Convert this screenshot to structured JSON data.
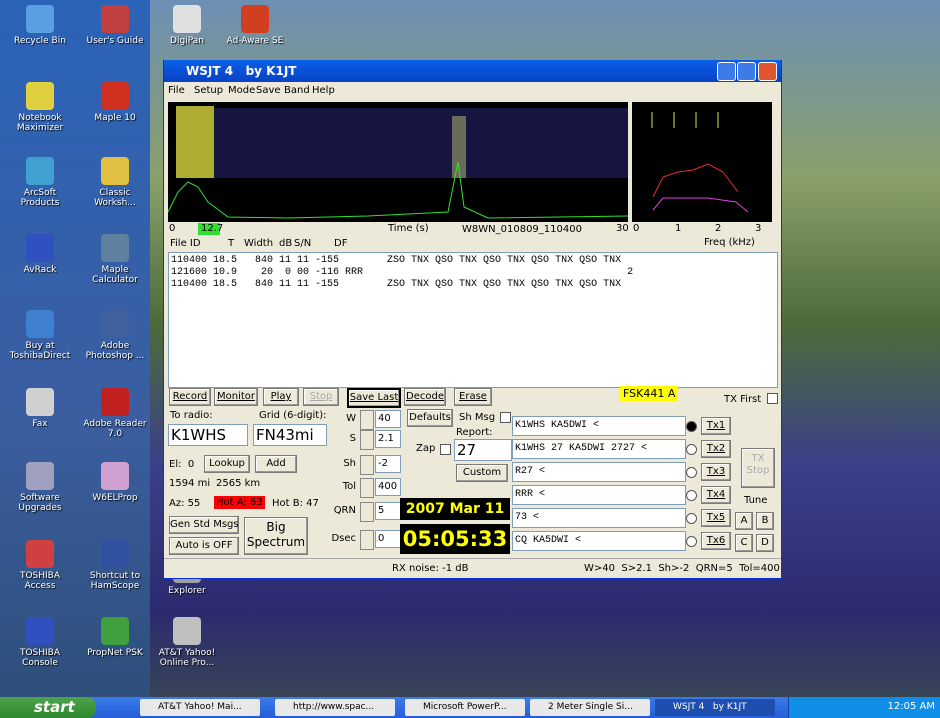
{
  "desktop": {
    "icons": [
      "Recycle Bin",
      "User's Guide",
      "DigiPan",
      "Ad-Aware SE",
      "Notebook Maximizer",
      "Maple 10",
      "ArcSoft Products",
      "Classic Worksh...",
      "AvRack",
      "Maple Calculator",
      "Buy at ToshibaDirect",
      "Adobe Photoshop ...",
      "Fax",
      "Adobe Reader 7.0",
      "Software Upgrades",
      "W6ELProp",
      "TOSHIBA Access",
      "Shortcut to HamScope",
      "Explorer",
      "TOSHIBA Console",
      "PropNet PSK",
      "AT&T Yahoo! Online Pro..."
    ]
  },
  "window": {
    "title": "WSJT 4   by K1JT",
    "menu": [
      "File",
      "Setup",
      "Mode",
      "Save",
      "Band",
      "Help"
    ],
    "spectrum": {
      "time_start": "0",
      "marker": "12.7",
      "time_label": "Time (s)",
      "file": "W8WN_010809_110400",
      "time_end": "30",
      "freq_ticks": [
        "0",
        "1",
        "2",
        "3"
      ],
      "freq_label": "Freq (kHz)"
    },
    "columns": [
      "File ID",
      "T",
      "Width",
      "dB",
      "S/N",
      "DF"
    ],
    "decodes": [
      "110400 18.5   840 11 11 -155        ZSO TNX QSO TNX QSO TNX QSO TNX QSO TNX",
      "121600 10.9    20  0 00 -116 RRR                                            2",
      "110400 18.5   840 11 11 -155        ZSO TNX QSO TNX QSO TNX QSO TNX QSO TNX"
    ],
    "buttons": [
      "Record",
      "Monitor",
      "Play",
      "Stop",
      "Save Last",
      "Decode",
      "Erase"
    ],
    "mode": "FSK441 A",
    "tx_first": "TX First",
    "to_radio_label": "To radio:",
    "to_radio": "K1WHS",
    "grid_label": "Grid (6-digit):",
    "grid": "FN43mi",
    "el": "El:  0",
    "lookup": "Lookup",
    "add": "Add",
    "miles": "1594 mi",
    "km": "2565 km",
    "az": "Az: 55",
    "hot_a": "Hot A: 63",
    "hot_b": "Hot B: 47",
    "gen_std": "Gen Std Msgs",
    "auto": "Auto is OFF",
    "big_spectrum": "Big Spectrum",
    "spinners": [
      {
        "label": "W",
        "value": "40"
      },
      {
        "label": "S",
        "value": "2.1"
      },
      {
        "label": "Sh",
        "value": "-2"
      },
      {
        "label": "Tol",
        "value": "400"
      },
      {
        "label": "QRN",
        "value": "5"
      },
      {
        "label": "Dsec",
        "value": "0"
      }
    ],
    "defaults": "Defaults",
    "sh_msg": "Sh Msg",
    "zap": "Zap",
    "report_label": "Report:",
    "report": "27",
    "custom": "Custom",
    "date": "2007 Mar 11",
    "time": "05:05:33",
    "messages": [
      "K1WHS KA5DWI <",
      "K1WHS 27 KA5DWI 2727 <",
      "R27 <",
      "RRR <",
      "73 <",
      "CQ KA5DWI <"
    ],
    "tx_buttons": [
      "Tx1",
      "Tx2",
      "Tx3",
      "Tx4",
      "Tx5",
      "Tx6"
    ],
    "tx_stop": "TX Stop",
    "tune": "Tune",
    "abcd": [
      "A",
      "B",
      "C",
      "D"
    ],
    "rx_noise": "RX noise: -1 dB",
    "status": "W>40  S>2.1  Sh>-2  QRN=5  Tol=400"
  },
  "taskbar": {
    "start": "start",
    "items": [
      "AT&T Yahoo! Mai...",
      "http://www.spac...",
      "Microsoft PowerP...",
      "2 Meter Single Si...",
      "WSJT 4   by K1JT"
    ],
    "clock": "12:05 AM"
  }
}
